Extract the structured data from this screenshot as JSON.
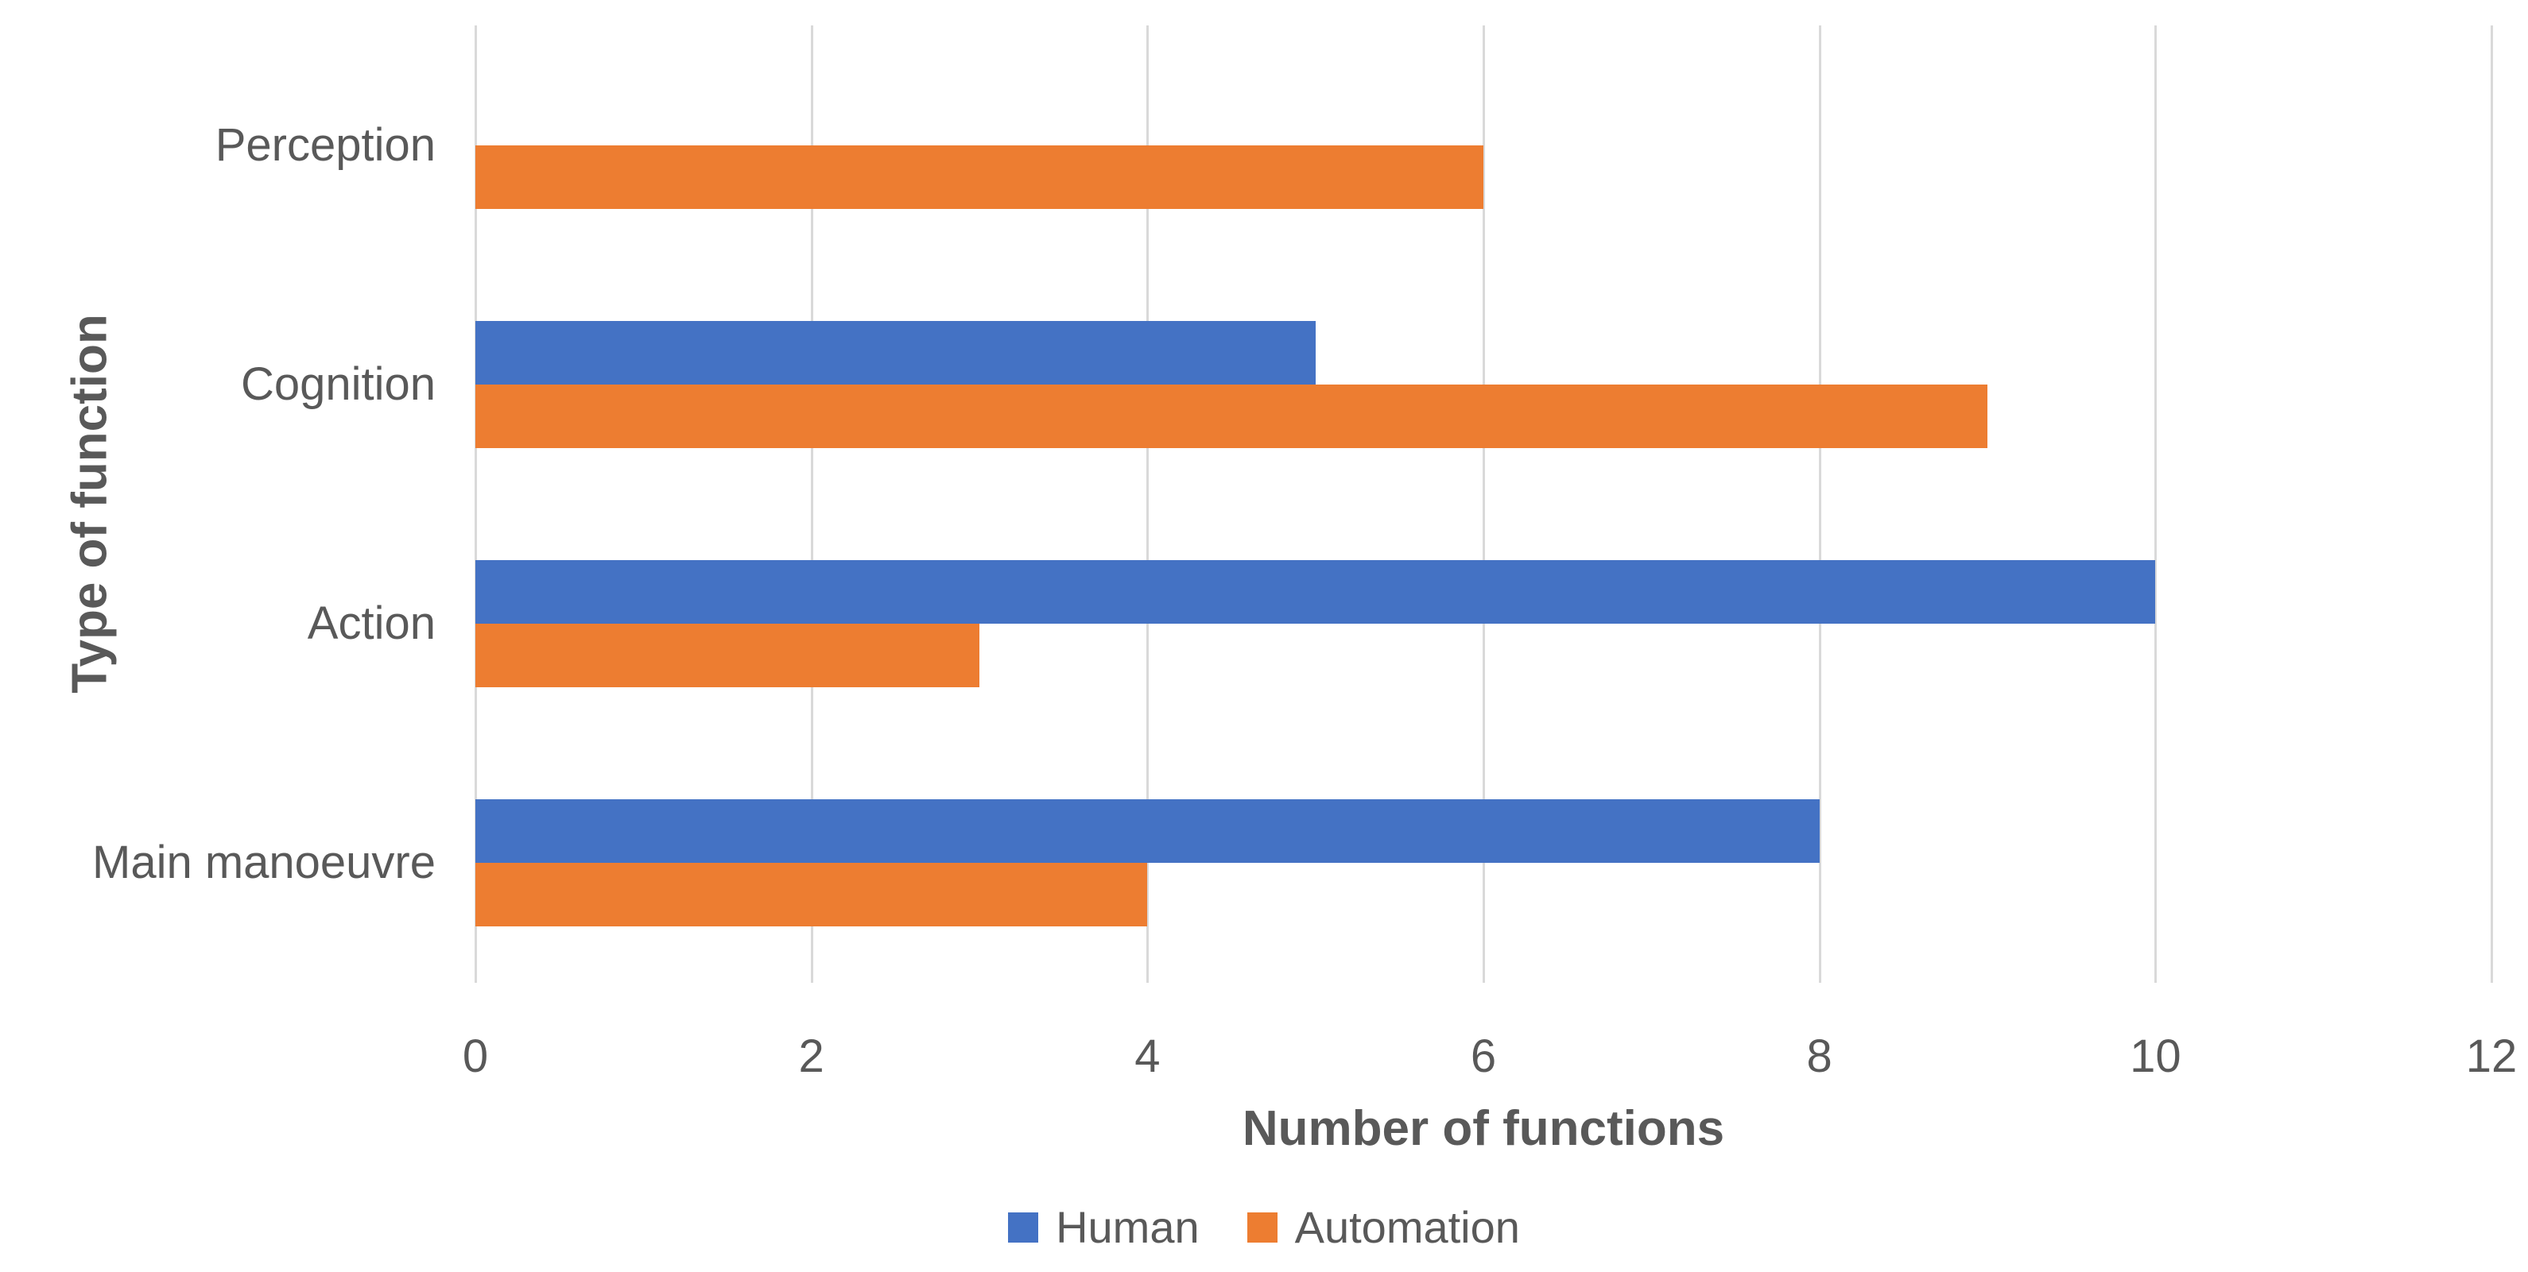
{
  "chart_data": {
    "type": "bar",
    "orientation": "horizontal",
    "title": "",
    "categories": [
      "Perception",
      "Cognition",
      "Action",
      "Main manoeuvre"
    ],
    "series": [
      {
        "name": "Human",
        "color": "#4472C4",
        "values": [
          0,
          5,
          10,
          8
        ]
      },
      {
        "name": "Automation",
        "color": "#ED7D31",
        "values": [
          6,
          9,
          3,
          4
        ]
      }
    ],
    "xlabel": "Number of functions",
    "ylabel": "Type of function",
    "xlim": [
      0,
      12
    ],
    "xticks": [
      "0",
      "2",
      "4",
      "6",
      "8",
      "10",
      "12"
    ],
    "grid": "vertical gridlines at every tick",
    "legend_position": "bottom"
  },
  "styles": {
    "gridline_color": "#D9D9D9",
    "text_color": "#595959",
    "background": "#FFFFFF"
  }
}
